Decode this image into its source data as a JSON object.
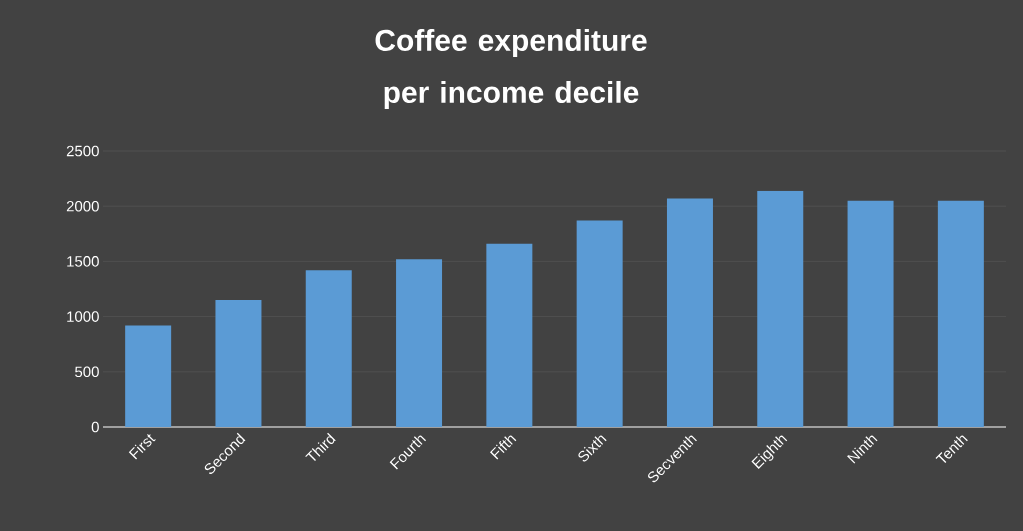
{
  "chart_data": {
    "type": "bar",
    "title": "Coffee expenditure per income decile",
    "categories": [
      "First",
      "Second",
      "Third",
      "Fourth",
      "Fifth",
      "Sixth",
      "Secventh",
      "Eighth",
      "Ninth",
      "Tenth"
    ],
    "values": [
      920,
      1150,
      1420,
      1520,
      1660,
      1870,
      2070,
      2140,
      2050,
      2050
    ],
    "color": "#5b9bd5",
    "ylim": [
      0,
      2500
    ],
    "yticks": [
      0,
      500,
      1000,
      1500,
      2000,
      2500
    ],
    "grid": "y"
  }
}
